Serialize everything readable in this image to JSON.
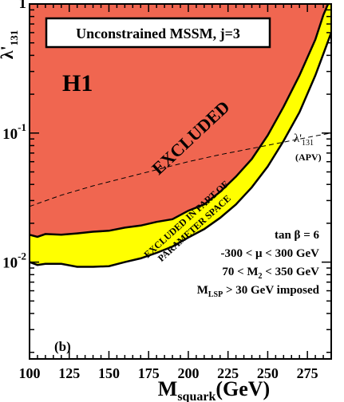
{
  "chart_data": {
    "type": "area",
    "title": "Unconstrained MSSM, j=3",
    "xlabel_main": "M",
    "xlabel_sub": "squark",
    "xlabel_unit": "(GeV)",
    "ylabel_main": "λ'",
    "ylabel_sub": "131",
    "xlim": [
      100,
      290
    ],
    "ylim_log10": [
      -2.75,
      0
    ],
    "yscale": "log",
    "xticks": [
      100,
      125,
      150,
      175,
      200,
      225,
      250,
      275
    ],
    "yticks": [
      {
        "label": "1",
        "exp": "",
        "value": 1
      },
      {
        "label": "10",
        "exp": "-1",
        "value": 0.1
      },
      {
        "label": "10",
        "exp": "-2",
        "value": 0.01
      }
    ],
    "grid": false,
    "regions": [
      {
        "name": "EXCLUDED",
        "color": "#f06650",
        "boundary_x": [
          100,
          105,
          110,
          120,
          130,
          140,
          150,
          160,
          170,
          180,
          190,
          200,
          210,
          220,
          230,
          240,
          250,
          260,
          270,
          280,
          285,
          288
        ],
        "boundary_y": [
          0.0163,
          0.0157,
          0.0165,
          0.0163,
          0.0167,
          0.0172,
          0.0175,
          0.0185,
          0.0192,
          0.0205,
          0.0215,
          0.025,
          0.028,
          0.035,
          0.046,
          0.063,
          0.096,
          0.16,
          0.28,
          0.53,
          0.82,
          1.0
        ]
      },
      {
        "name": "EXCLUDED IN PART OF PARAMETER SPACE",
        "line1": "EXCLUDED IN PART OF",
        "line2": "PARAMETER SPACE",
        "color": "#ffff00",
        "boundary_x": [
          100,
          105,
          110,
          120,
          130,
          140,
          150,
          160,
          170,
          180,
          190,
          200,
          210,
          220,
          230,
          240,
          250,
          260,
          270,
          280,
          285,
          290
        ],
        "boundary_y": [
          0.01,
          0.0095,
          0.0097,
          0.0097,
          0.0092,
          0.0092,
          0.0093,
          0.01,
          0.0107,
          0.0118,
          0.0132,
          0.0155,
          0.018,
          0.022,
          0.028,
          0.038,
          0.055,
          0.087,
          0.145,
          0.28,
          0.41,
          0.6
        ]
      }
    ],
    "apv_line": {
      "label_main": "λ'",
      "label_sub": "131",
      "label_paren": "(APV)",
      "x": [
        100,
        120,
        140,
        160,
        180,
        200,
        220,
        240,
        260,
        280,
        290
      ],
      "y": [
        0.027,
        0.033,
        0.039,
        0.045,
        0.052,
        0.06,
        0.068,
        0.076,
        0.085,
        0.095,
        0.1
      ]
    },
    "annotations": {
      "experiment": "H1",
      "panel": "(b)",
      "conditions": [
        {
          "main": "tan β = 6",
          "sub": "",
          "rest": ""
        },
        {
          "main": "-300 < μ < 300 GeV",
          "sub": "",
          "rest": ""
        },
        {
          "main": "70 < M",
          "sub": "2",
          "rest": " < 350 GeV"
        },
        {
          "main": "M",
          "sub": "LSP",
          "rest": " > 30 GeV imposed"
        }
      ]
    }
  }
}
